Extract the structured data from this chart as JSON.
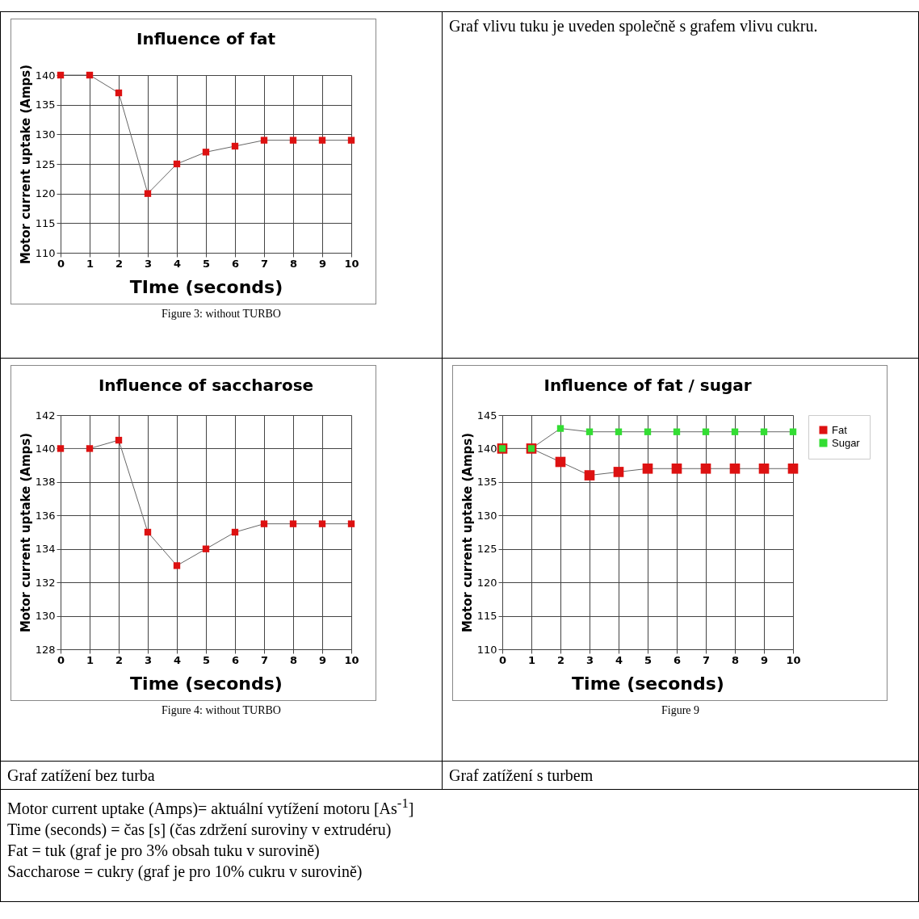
{
  "chart_data": [
    {
      "type": "line",
      "title": "Influence of fat",
      "xlabel": "TIme (seconds)",
      "ylabel": "Motor current uptake (Amps)",
      "x": [
        0,
        1,
        2,
        3,
        4,
        5,
        6,
        7,
        8,
        9,
        10
      ],
      "series": [
        {
          "color": "#dd1111",
          "values": [
            140,
            140,
            137,
            120,
            125,
            127,
            128,
            129,
            129,
            129,
            129
          ]
        }
      ],
      "xlim": [
        0,
        10
      ],
      "xticks": [
        0,
        1,
        2,
        3,
        4,
        5,
        6,
        7,
        8,
        9,
        10
      ],
      "ylim": [
        110,
        140
      ],
      "yticks": [
        110,
        115,
        120,
        125,
        130,
        135,
        140
      ],
      "grid": true,
      "marker": "square",
      "annotations": [
        "Figure 3: without TURBO",
        "Graf vlivu tuku je uveden společně s grafem vlivu cukru."
      ]
    },
    {
      "type": "line",
      "title": "Influence of saccharose",
      "xlabel": "Time (seconds)",
      "ylabel": "Motor current uptake (Amps)",
      "x": [
        0,
        1,
        2,
        3,
        4,
        5,
        6,
        7,
        8,
        9,
        10
      ],
      "series": [
        {
          "color": "#dd1111",
          "values": [
            140,
            140,
            140.5,
            135,
            133,
            134,
            135,
            135.5,
            135.5,
            135.5,
            135.5
          ]
        }
      ],
      "xlim": [
        0,
        10
      ],
      "xticks": [
        0,
        1,
        2,
        3,
        4,
        5,
        6,
        7,
        8,
        9,
        10
      ],
      "ylim": [
        128,
        142
      ],
      "yticks": [
        128,
        130,
        132,
        134,
        136,
        138,
        140,
        142
      ],
      "grid": true,
      "marker": "square",
      "annotations": [
        "Figure 4: without TURBO",
        "Graf zatížení bez turba",
        "Motor current uptake (Amps)= aktuální vytížení motoru  [As$^{-1}$]",
        "Time (seconds) = čas [s] (čas zdržení suroviny v extrudéru)",
        "Fat = tuk (graf je pro 3% obsah tuku v surovině)",
        "Saccharose = cukry (graf je pro 10% cukru v surovině)"
      ]
    },
    {
      "type": "line",
      "title": "Influence of fat / sugar",
      "xlabel": "Time (seconds)",
      "ylabel": "Motor current uptake (Amps)",
      "x": [
        0,
        1,
        2,
        3,
        4,
        5,
        6,
        7,
        8,
        9,
        10
      ],
      "series": [
        {
          "name": "Fat",
          "color": "#dd1111",
          "values": [
            140,
            140,
            138,
            136,
            136.5,
            137,
            137,
            137,
            137,
            137,
            137
          ]
        },
        {
          "name": "Sugar",
          "color": "#33dd33",
          "values": [
            140,
            140,
            143,
            142.5,
            142.5,
            142.5,
            142.5,
            142.5,
            142.5,
            142.5,
            142.5
          ]
        }
      ],
      "xlim": [
        0,
        10
      ],
      "xticks": [
        0,
        1,
        2,
        3,
        4,
        5,
        6,
        7,
        8,
        9,
        10
      ],
      "ylim": [
        110,
        145
      ],
      "yticks": [
        110,
        115,
        120,
        125,
        130,
        135,
        140,
        145
      ],
      "grid": true,
      "marker": "square",
      "legend": "right",
      "annotations": [
        "Figure 9",
        "Graf zatížení s turbem"
      ]
    }
  ]
}
